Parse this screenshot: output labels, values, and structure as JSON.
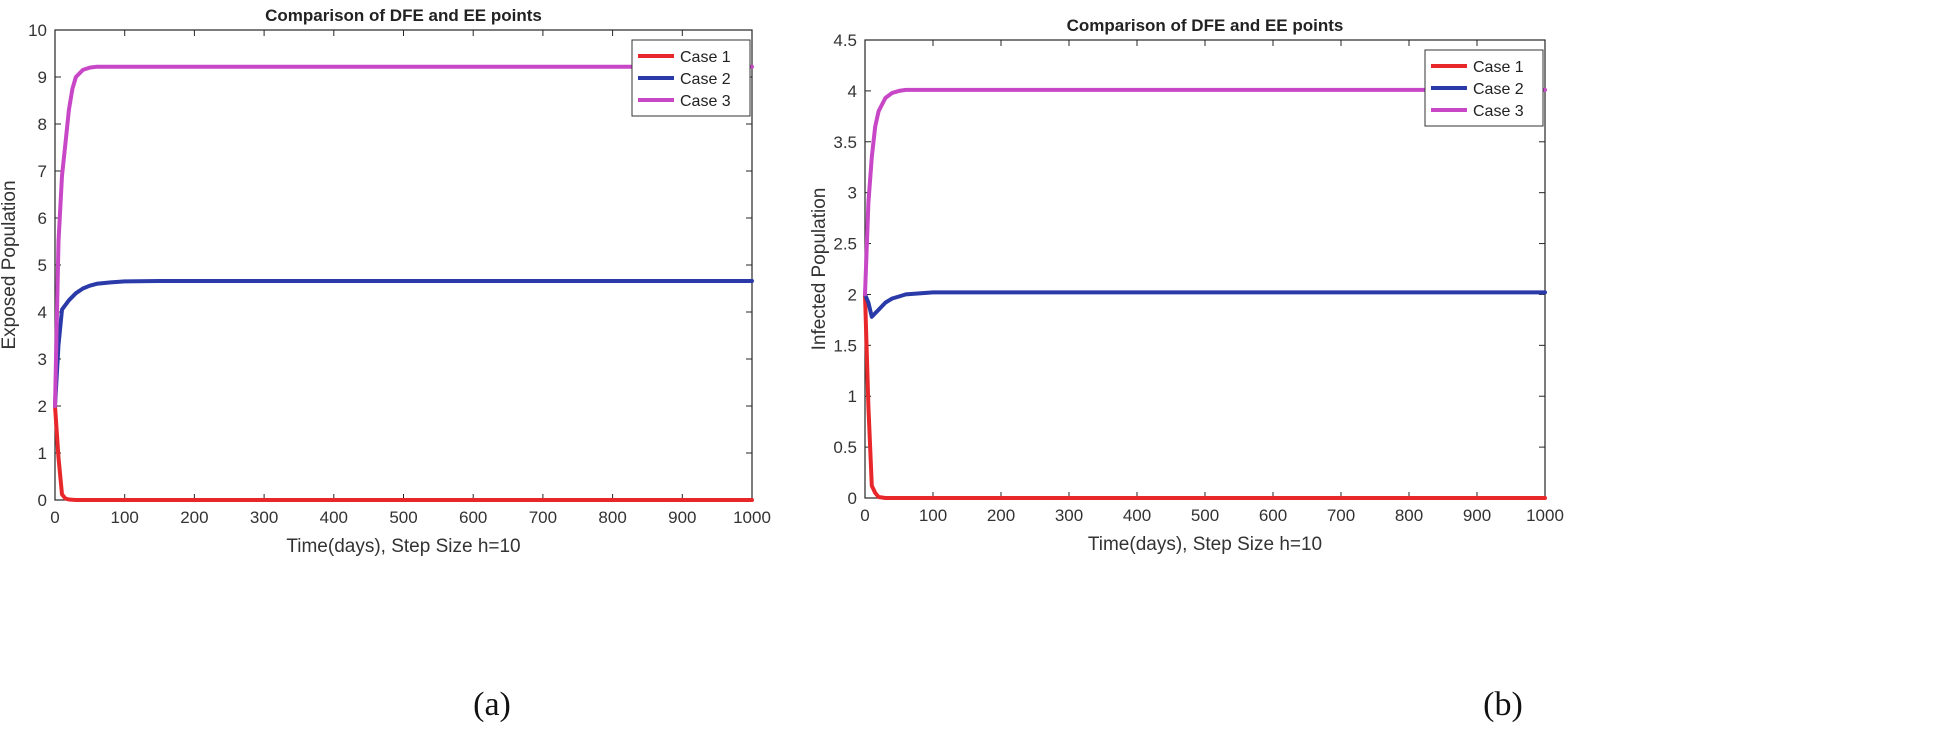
{
  "chart_data": [
    {
      "type": "line",
      "panel_label": "(a)",
      "title": "Comparison of DFE and EE points",
      "xlabel": "Time(days), Step Size h=10",
      "ylabel": "Exposed Population",
      "xlim": [
        0,
        1000
      ],
      "ylim": [
        0,
        10
      ],
      "xticks": [
        0,
        100,
        200,
        300,
        400,
        500,
        600,
        700,
        800,
        900,
        1000
      ],
      "yticks": [
        0,
        1,
        2,
        3,
        4,
        5,
        6,
        7,
        8,
        9,
        10
      ],
      "legend": "top-right",
      "series": [
        {
          "name": "Case 1",
          "color": "#e8272b",
          "x": [
            0,
            5,
            10,
            15,
            20,
            30,
            50,
            100,
            1000
          ],
          "y": [
            2,
            0.9,
            0.12,
            0.03,
            0.01,
            0,
            0,
            0,
            0
          ]
        },
        {
          "name": "Case 2",
          "color": "#2a3aa8",
          "x": [
            0,
            5,
            10,
            20,
            30,
            40,
            50,
            60,
            80,
            100,
            150,
            1000
          ],
          "y": [
            2,
            3.3,
            4.05,
            4.25,
            4.4,
            4.5,
            4.56,
            4.6,
            4.63,
            4.65,
            4.66,
            4.66
          ]
        },
        {
          "name": "Case 3",
          "color": "#c747c7",
          "x": [
            0,
            5,
            10,
            15,
            20,
            25,
            30,
            40,
            50,
            60,
            80,
            1000
          ],
          "y": [
            2,
            5.5,
            6.9,
            7.6,
            8.3,
            8.75,
            9.0,
            9.15,
            9.2,
            9.22,
            9.22,
            9.22
          ]
        }
      ]
    },
    {
      "type": "line",
      "panel_label": "(b)",
      "title": "Comparison of DFE and EE points",
      "xlabel": "Time(days), Step Size h=10",
      "ylabel": "Infected Population",
      "xlim": [
        0,
        1000
      ],
      "ylim": [
        0,
        4.5
      ],
      "xticks": [
        0,
        100,
        200,
        300,
        400,
        500,
        600,
        700,
        800,
        900,
        1000
      ],
      "yticks": [
        0,
        0.5,
        1,
        1.5,
        2,
        2.5,
        3,
        3.5,
        4,
        4.5
      ],
      "legend": "top-right",
      "series": [
        {
          "name": "Case 1",
          "color": "#e8272b",
          "x": [
            0,
            5,
            10,
            15,
            20,
            30,
            50,
            1000
          ],
          "y": [
            2,
            0.9,
            0.12,
            0.05,
            0.01,
            0,
            0,
            0
          ]
        },
        {
          "name": "Case 2",
          "color": "#2a3aa8",
          "x": [
            0,
            5,
            10,
            20,
            30,
            40,
            50,
            60,
            80,
            100,
            1000
          ],
          "y": [
            2,
            1.92,
            1.78,
            1.85,
            1.92,
            1.96,
            1.98,
            2.0,
            2.01,
            2.02,
            2.02
          ]
        },
        {
          "name": "Case 3",
          "color": "#c747c7",
          "x": [
            0,
            5,
            10,
            15,
            20,
            30,
            40,
            50,
            60,
            80,
            1000
          ],
          "y": [
            2,
            2.9,
            3.35,
            3.65,
            3.8,
            3.93,
            3.98,
            4.0,
            4.01,
            4.01,
            4.01
          ]
        }
      ]
    }
  ]
}
